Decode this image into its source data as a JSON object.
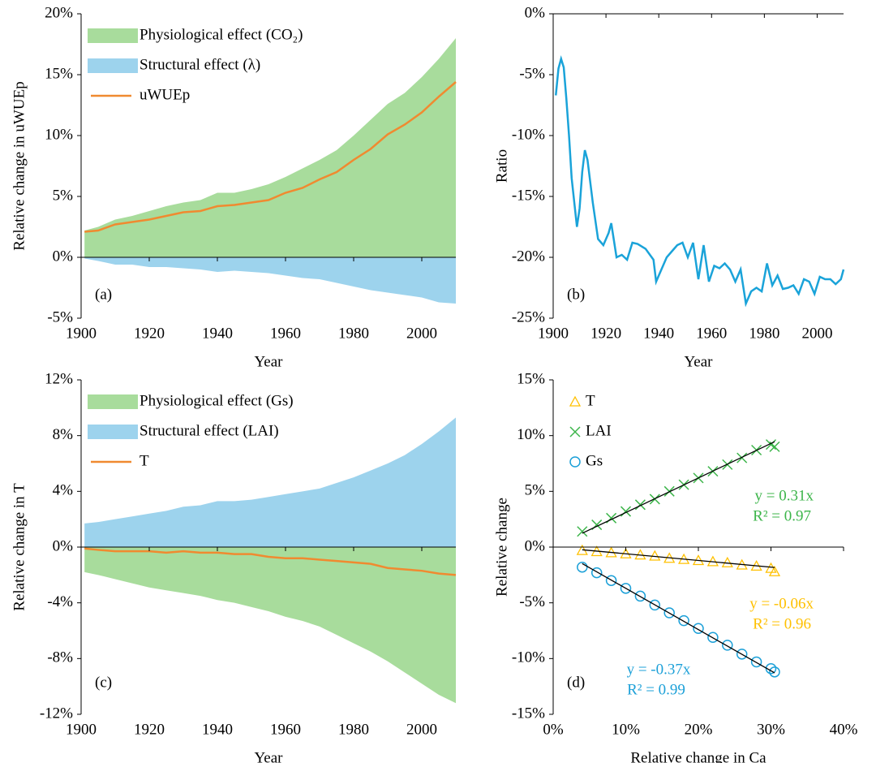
{
  "chart_data": [
    {
      "type": "area",
      "panel_label": "(a)",
      "y_label": "Relative change in uWUEp",
      "x_label": "Year",
      "x": [
        1901,
        1905,
        1910,
        1915,
        1920,
        1925,
        1930,
        1935,
        1940,
        1945,
        1950,
        1955,
        1960,
        1965,
        1970,
        1975,
        1980,
        1985,
        1990,
        1995,
        2000,
        2005,
        2010
      ],
      "series": [
        {
          "name": "Physiological effect (CO₂)",
          "style": "area",
          "color": "#a8dc9c",
          "values": [
            2.2,
            2.5,
            3.1,
            3.4,
            3.8,
            4.2,
            4.5,
            4.7,
            5.3,
            5.3,
            5.6,
            6.0,
            6.6,
            7.3,
            8.0,
            8.8,
            10.0,
            11.3,
            12.6,
            13.5,
            14.8,
            16.3,
            18.0
          ]
        },
        {
          "name": "Structural effect (λ)",
          "style": "area",
          "color": "#9dd3ed",
          "values": [
            -0.1,
            -0.3,
            -0.6,
            -0.6,
            -0.8,
            -0.8,
            -0.9,
            -1.0,
            -1.2,
            -1.1,
            -1.2,
            -1.3,
            -1.5,
            -1.7,
            -1.8,
            -2.1,
            -2.4,
            -2.7,
            -2.9,
            -3.1,
            -3.3,
            -3.7,
            -3.8
          ]
        },
        {
          "name": "uWUEp",
          "style": "line",
          "color": "#f08a30",
          "values": [
            2.1,
            2.2,
            2.7,
            2.9,
            3.1,
            3.4,
            3.7,
            3.8,
            4.2,
            4.3,
            4.5,
            4.7,
            5.3,
            5.7,
            6.4,
            7.0,
            8.0,
            8.9,
            10.1,
            10.9,
            11.9,
            13.2,
            14.4
          ]
        }
      ],
      "xlim": [
        1900,
        2010
      ],
      "xticks": [
        1900,
        1920,
        1940,
        1960,
        1980,
        2000
      ],
      "ylim": [
        -5,
        20
      ],
      "yticks": [
        {
          "value": -5,
          "label": "-5%"
        },
        {
          "value": 0,
          "label": "0%"
        },
        {
          "value": 5,
          "label": "5%"
        },
        {
          "value": 10,
          "label": "10%"
        },
        {
          "value": 15,
          "label": "15%"
        },
        {
          "value": 20,
          "label": "20%"
        }
      ],
      "legend": "upper left"
    },
    {
      "type": "line",
      "panel_label": "(b)",
      "y_label": "Ratio",
      "x_label": "Year",
      "x": [
        1901,
        1902,
        1903,
        1904,
        1905,
        1906,
        1907,
        1909,
        1910,
        1911,
        1912,
        1913,
        1915,
        1917,
        1919,
        1921,
        1922,
        1924,
        1926,
        1928,
        1930,
        1932,
        1935,
        1938,
        1939,
        1941,
        1943,
        1945,
        1947,
        1949,
        1951,
        1953,
        1955,
        1957,
        1959,
        1961,
        1963,
        1965,
        1967,
        1969,
        1971,
        1973,
        1975,
        1977,
        1979,
        1981,
        1983,
        1985,
        1987,
        1989,
        1991,
        1993,
        1995,
        1997,
        1999,
        2001,
        2003,
        2005,
        2007,
        2009,
        2010
      ],
      "series": [
        {
          "name": "Ratio",
          "color": "#1aa3d9",
          "values": [
            -6.7,
            -4.5,
            -3.7,
            -4.4,
            -7,
            -10,
            -13.5,
            -17.5,
            -16,
            -13,
            -11.2,
            -12,
            -15.5,
            -18.5,
            -19,
            -18,
            -17.2,
            -20,
            -19.8,
            -20.2,
            -18.8,
            -18.9,
            -19.3,
            -20.2,
            -22,
            -21,
            -20,
            -19.5,
            -19,
            -18.8,
            -20,
            -18.8,
            -21.8,
            -19,
            -22,
            -20.7,
            -20.9,
            -20.5,
            -21,
            -22,
            -21,
            -23.8,
            -22.8,
            -22.5,
            -22.8,
            -20.5,
            -22.3,
            -21.5,
            -22.6,
            -22.5,
            -22.3,
            -23,
            -21.8,
            -22,
            -23,
            -21.6,
            -21.8,
            -21.8,
            -22.2,
            -21.8,
            -21
          ]
        }
      ],
      "xlim": [
        1900,
        2010
      ],
      "xticks": [
        1900,
        1920,
        1940,
        1960,
        1980,
        2000
      ],
      "ylim": [
        -25,
        0
      ],
      "yticks": [
        {
          "value": -25,
          "label": "-25%"
        },
        {
          "value": -20,
          "label": "-20%"
        },
        {
          "value": -15,
          "label": "-15%"
        },
        {
          "value": -10,
          "label": "-10%"
        },
        {
          "value": -5,
          "label": "-5%"
        },
        {
          "value": 0,
          "label": "0%"
        }
      ]
    },
    {
      "type": "area",
      "panel_label": "(c)",
      "y_label": "Relative change in T",
      "x_label": "Year",
      "x": [
        1901,
        1905,
        1910,
        1915,
        1920,
        1925,
        1930,
        1935,
        1940,
        1945,
        1950,
        1955,
        1960,
        1965,
        1970,
        1975,
        1980,
        1985,
        1990,
        1995,
        2000,
        2005,
        2010
      ],
      "series": [
        {
          "name": "Physiological effect (Gs)",
          "style": "area",
          "color": "#a8dc9c",
          "values": [
            -1.8,
            -2.0,
            -2.3,
            -2.6,
            -2.9,
            -3.1,
            -3.3,
            -3.5,
            -3.8,
            -4.0,
            -4.3,
            -4.6,
            -5.0,
            -5.3,
            -5.7,
            -6.3,
            -6.9,
            -7.5,
            -8.2,
            -9.0,
            -9.8,
            -10.6,
            -11.2
          ]
        },
        {
          "name": "Structural effect (LAI)",
          "style": "area",
          "color": "#9dd3ed",
          "values": [
            1.7,
            1.8,
            2.0,
            2.2,
            2.4,
            2.6,
            2.9,
            3.0,
            3.3,
            3.3,
            3.4,
            3.6,
            3.8,
            4.0,
            4.2,
            4.6,
            5.0,
            5.5,
            6.0,
            6.6,
            7.4,
            8.3,
            9.3
          ]
        },
        {
          "name": "T",
          "style": "line",
          "color": "#f08a30",
          "values": [
            -0.1,
            -0.2,
            -0.3,
            -0.3,
            -0.3,
            -0.4,
            -0.3,
            -0.4,
            -0.4,
            -0.5,
            -0.5,
            -0.7,
            -0.8,
            -0.8,
            -0.9,
            -1.0,
            -1.1,
            -1.2,
            -1.5,
            -1.6,
            -1.7,
            -1.9,
            -2.0
          ]
        }
      ],
      "xlim": [
        1900,
        2010
      ],
      "xticks": [
        1900,
        1920,
        1940,
        1960,
        1980,
        2000
      ],
      "ylim": [
        -12,
        12
      ],
      "yticks": [
        {
          "value": -12,
          "label": "-12%"
        },
        {
          "value": -8,
          "label": "-8%"
        },
        {
          "value": -4,
          "label": "-4%"
        },
        {
          "value": 0,
          "label": "0%"
        },
        {
          "value": 4,
          "label": "4%"
        },
        {
          "value": 8,
          "label": "8%"
        },
        {
          "value": 12,
          "label": "12%"
        }
      ],
      "legend": "upper left"
    },
    {
      "type": "scatter",
      "panel_label": "(d)",
      "y_label": "Relative change",
      "x_label": "Relative change in Ca",
      "x": [
        4,
        6,
        8,
        10,
        12,
        14,
        16,
        18,
        20,
        22,
        24,
        26,
        28,
        30,
        30.5
      ],
      "series": [
        {
          "name": "T",
          "marker": "triangle",
          "color": "#ffc000",
          "values": [
            -0.3,
            -0.4,
            -0.5,
            -0.6,
            -0.7,
            -0.8,
            -1.0,
            -1.1,
            -1.2,
            -1.3,
            -1.4,
            -1.6,
            -1.7,
            -1.9,
            -2.2
          ],
          "slope": -0.06,
          "equation": "y = -0.06x",
          "r2": "R² = 0.96"
        },
        {
          "name": "LAI",
          "marker": "cross",
          "color": "#3cb54a",
          "values": [
            1.4,
            2.0,
            2.6,
            3.2,
            3.8,
            4.3,
            5.0,
            5.6,
            6.2,
            6.8,
            7.4,
            8.0,
            8.7,
            9.2,
            9.0
          ],
          "slope": 0.31,
          "equation": "y = 0.31x",
          "r2": "R² = 0.97"
        },
        {
          "name": "Gs",
          "marker": "circle",
          "color": "#1ca0d8",
          "values": [
            -1.8,
            -2.3,
            -3.0,
            -3.7,
            -4.4,
            -5.2,
            -5.9,
            -6.6,
            -7.3,
            -8.1,
            -8.8,
            -9.6,
            -10.3,
            -10.9,
            -11.2
          ],
          "slope": -0.37,
          "equation": "y = -0.37x",
          "r2": "R² = 0.99"
        }
      ],
      "xlim": [
        0,
        40
      ],
      "xticks": [
        {
          "value": 0,
          "label": "0%"
        },
        {
          "value": 10,
          "label": "10%"
        },
        {
          "value": 20,
          "label": "20%"
        },
        {
          "value": 30,
          "label": "30%"
        },
        {
          "value": 40,
          "label": "40%"
        }
      ],
      "ylim": [
        -15,
        15
      ],
      "yticks": [
        {
          "value": -15,
          "label": "-15%"
        },
        {
          "value": -10,
          "label": "-10%"
        },
        {
          "value": -5,
          "label": "-5%"
        },
        {
          "value": 0,
          "label": "0%"
        },
        {
          "value": 5,
          "label": "5%"
        },
        {
          "value": 10,
          "label": "10%"
        },
        {
          "value": 15,
          "label": "15%"
        }
      ],
      "legend": "upper left"
    }
  ]
}
